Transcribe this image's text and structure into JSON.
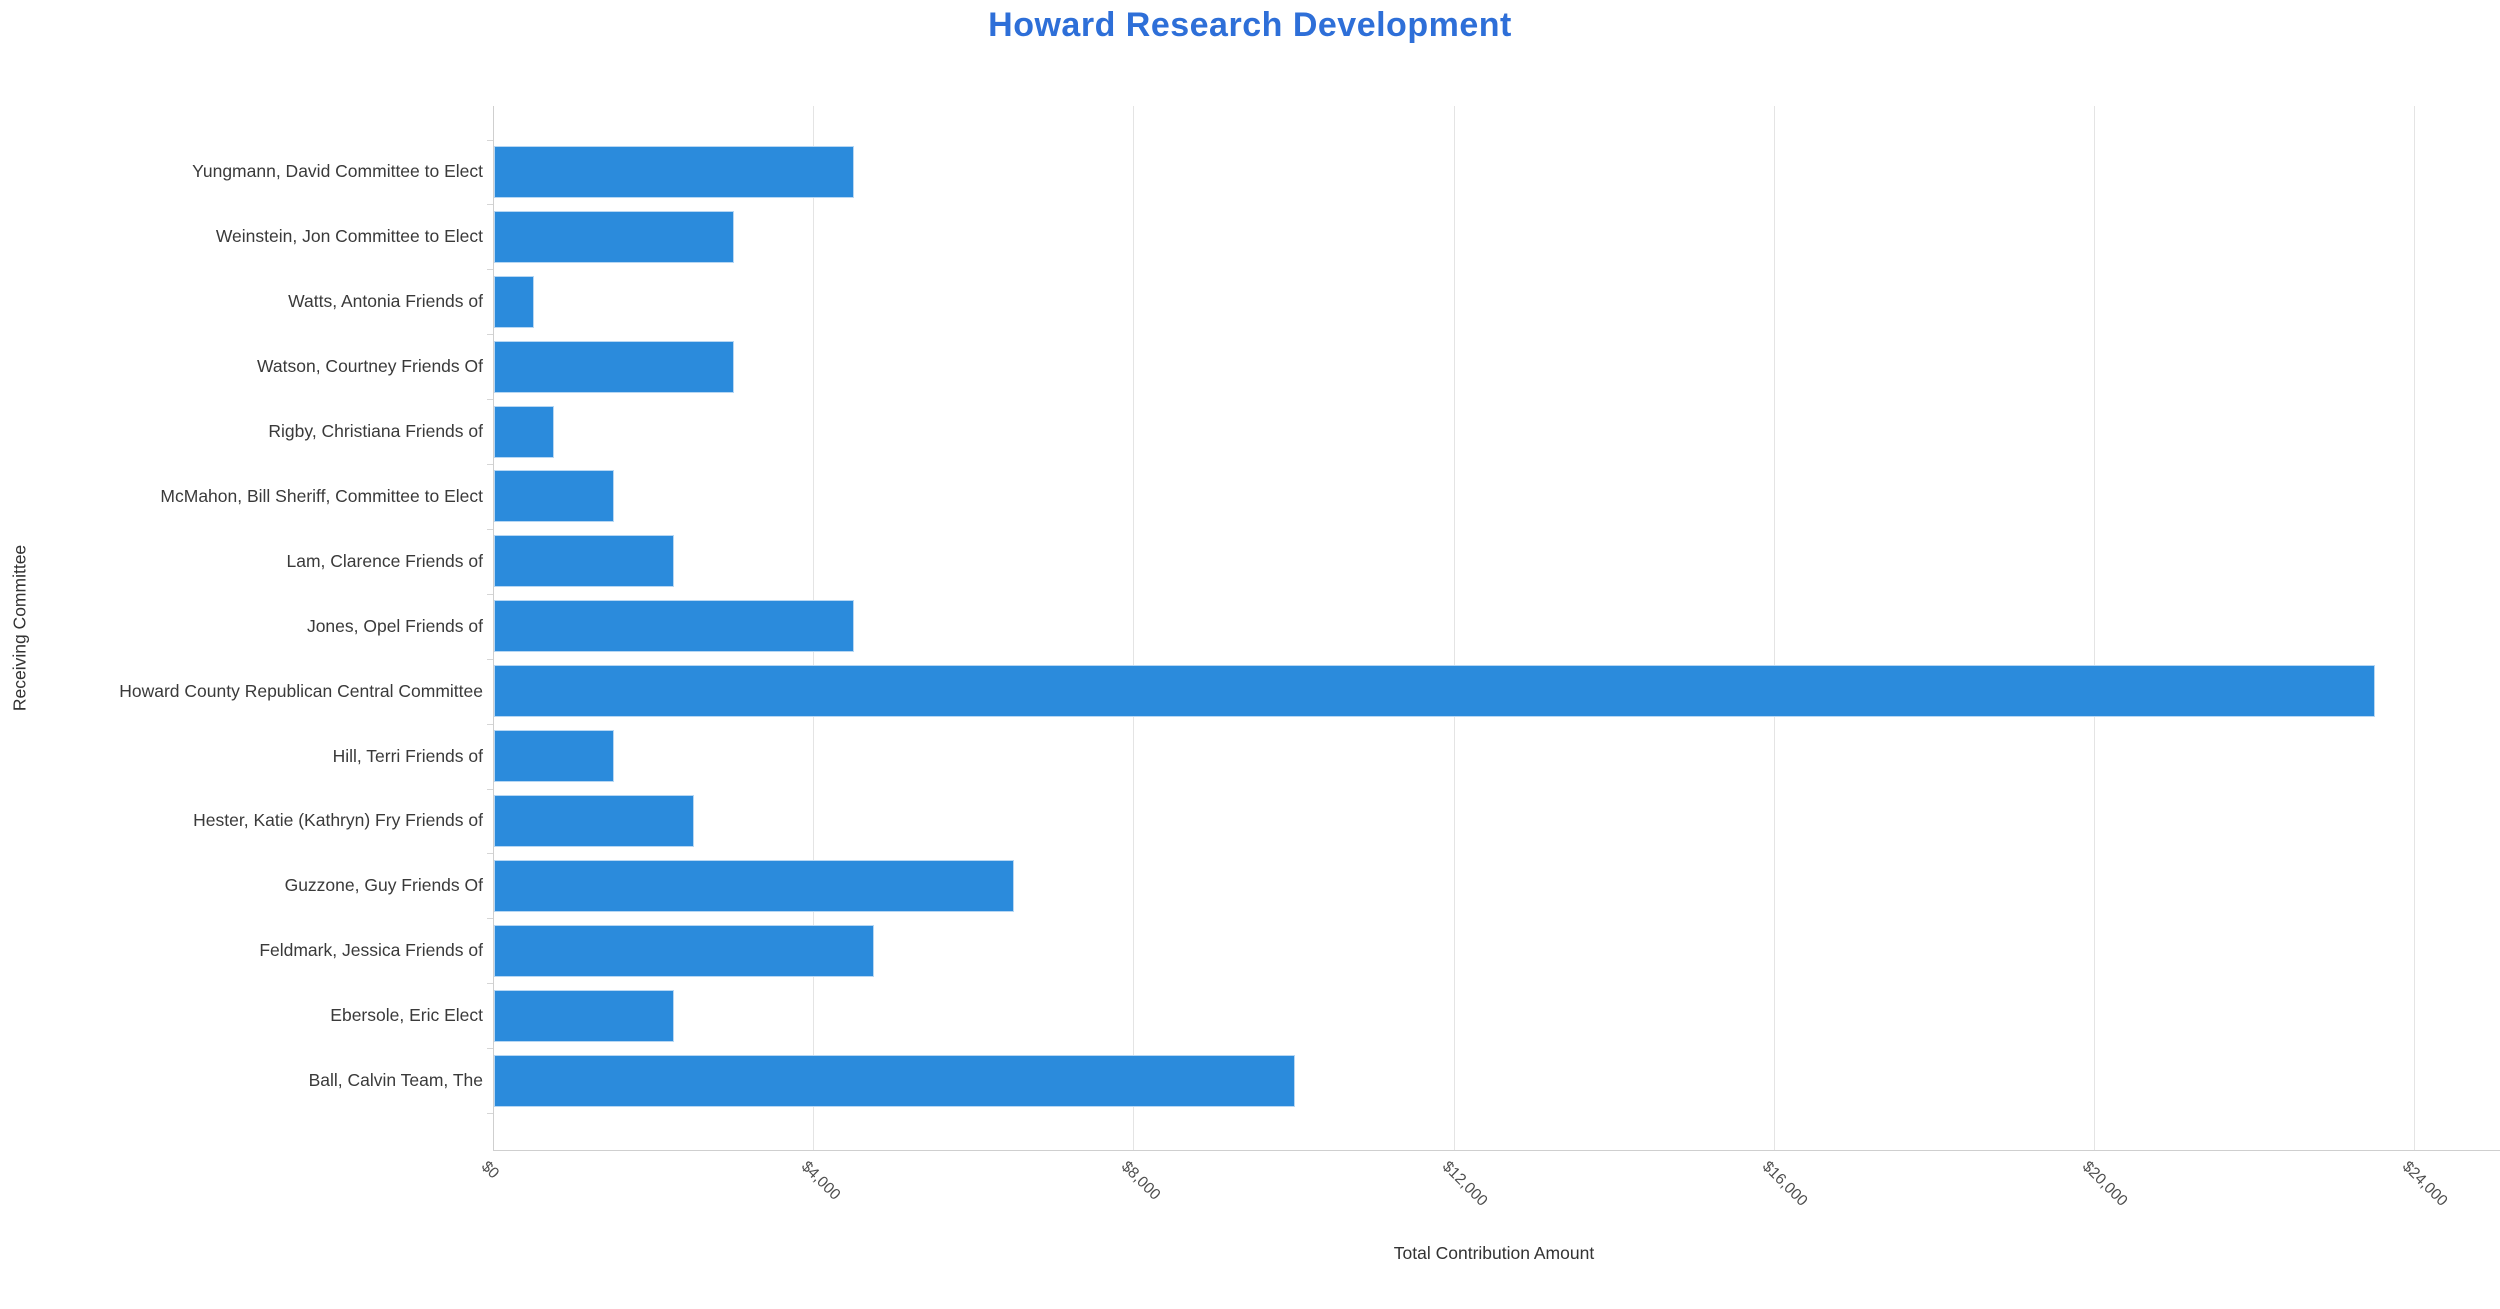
{
  "title": "Howard Research Development",
  "colors": {
    "title": "#2e6fd8",
    "bar": "#2b8bdc",
    "bar_border": "#b7d7f3",
    "gridline": "#e4e4e4",
    "axis_line": "#cfcfcf",
    "label_text": "#3a3a3a",
    "tick_text": "#4d4d4d"
  },
  "chart_data": {
    "type": "bar",
    "orientation": "horizontal",
    "title": "Howard Research Development",
    "xlabel": "Total Contribution Amount",
    "ylabel": "Receiving Committee",
    "grid": "vertical-only",
    "legend": "none",
    "xlim": [
      0,
      25000
    ],
    "x_tick_values": [
      0,
      4000,
      8000,
      12000,
      16000,
      20000,
      24000
    ],
    "x_tick_labels": [
      "$0",
      "$4,000",
      "$8,000",
      "$12,000",
      "$16,000",
      "$20,000",
      "$24,000"
    ],
    "categories": [
      "Yungmann, David Committee to Elect",
      "Weinstein, Jon Committee to Elect",
      "Watts, Antonia Friends of",
      "Watson, Courtney Friends Of",
      "Rigby, Christiana Friends of",
      "McMahon, Bill Sheriff, Committee to Elect",
      "Lam, Clarence Friends of",
      "Jones, Opel Friends of",
      "Howard County Republican Central Committee",
      "Hill, Terri Friends of",
      "Hester, Katie (Kathryn) Fry Friends of",
      "Guzzone, Guy Friends Of",
      "Feldmark, Jessica Friends of",
      "Ebersole, Eric Elect",
      "Ball, Calvin Team, The"
    ],
    "values": [
      4500,
      3000,
      500,
      3000,
      750,
      1500,
      2250,
      4500,
      23500,
      1500,
      2500,
      6500,
      4750,
      2250,
      10000
    ]
  }
}
